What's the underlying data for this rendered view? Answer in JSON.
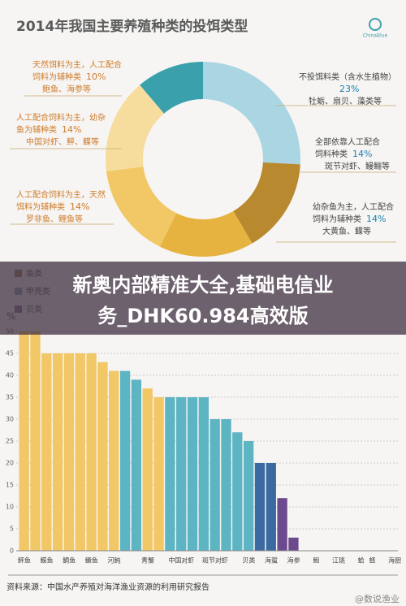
{
  "header": {
    "title": "2014年我国主要养殖种类的投饵类型",
    "logo": "ChinaBlue"
  },
  "banner": [
    "新奥内部精准大全,基础电信业",
    "务_DHK60.984高效版"
  ],
  "chart_data": [
    {
      "type": "donut",
      "labels": [
        [
          "不投饵料类（含水生植物）",
          ""
        ],
        [
          "全部依靠人工配合",
          "饲料种类"
        ],
        [
          "幼杂鱼为主，人工配合",
          "饲料为辅种类"
        ],
        [
          "人工配合饲料为主，天然",
          "饵料为辅种类"
        ],
        [
          "人工配合饲料为主，幼杂",
          "鱼为辅种类"
        ],
        [
          "天然饵料为主，人工配合",
          "饲料为辅种类"
        ]
      ],
      "examples": [
        "牡蛎、扇贝、藻类等",
        "斑节对虾、鳗鲡等",
        "大黄鱼、鲽等",
        "罗非鱼、鲤鱼等",
        "中国对虾、鲆、鲽等",
        "鲍鱼、海参等"
      ],
      "values": [
        23,
        14,
        14,
        14,
        14,
        10
      ],
      "value_labels": [
        "23%",
        "14%",
        "14%",
        "14%",
        "14%",
        "10%"
      ],
      "colors": [
        "#a9d6e2",
        "#b8892f",
        "#e6b240",
        "#f1c865",
        "#f6dd9e",
        "#3aa1ac"
      ]
    },
    {
      "type": "bar",
      "y_label": "%",
      "legend": [
        {
          "name": "鱼类",
          "color": "#9c7b5b"
        },
        {
          "name": "甲壳类",
          "color": "#8aa0b0"
        },
        {
          "name": "贝类",
          "color": "#8b6fa0"
        }
      ],
      "categories": [
        "鲆鱼",
        null,
        "鲽鱼",
        null,
        "鲷鱼",
        null,
        "鳜鱼",
        null,
        "河鲀",
        null,
        null,
        "青蟹",
        null,
        null,
        "中国对虾",
        null,
        null,
        "斑节对虾",
        null,
        null,
        "贝类",
        null,
        "海蜇",
        null,
        "海参",
        null,
        "鲍",
        null,
        "江珧",
        null,
        "蛤",
        "蛏",
        null,
        "海胆"
      ],
      "values": [
        50,
        50,
        45,
        45,
        45,
        45,
        45,
        43,
        41,
        41,
        39,
        37,
        35,
        35,
        35,
        35,
        35,
        30,
        30,
        27,
        25,
        20,
        20,
        12,
        3,
        0,
        0,
        0,
        0,
        0,
        0,
        0,
        0,
        0
      ],
      "colors": [
        "#f2c766",
        "#f2c766",
        "#f2c766",
        "#f2c766",
        "#f2c766",
        "#f2c766",
        "#f2c766",
        "#f2c766",
        "#f2c766",
        "#5db5c4",
        "#5db5c4",
        "#f2c766",
        "#f2c766",
        "#5db5c4",
        "#5db5c4",
        "#5db5c4",
        "#5db5c4",
        "#5db5c4",
        "#5db5c4",
        "#5db5c4",
        "#5db5c4",
        "#3b6aa0",
        "#3b6aa0",
        "#6d4a8e",
        "#6d4a8e",
        "#6d4a8e",
        "#6d4a8e",
        "#6d4a8e",
        "#6d4a8e",
        "#6d4a8e",
        "#6d4a8e",
        "#6d4a8e",
        "#6d4a8e",
        "#6d4a8e"
      ],
      "ylim": [
        0,
        50
      ],
      "yticks": [
        0,
        5,
        10,
        15,
        20,
        25,
        30,
        35,
        40,
        45,
        50
      ],
      "grid": true
    }
  ],
  "footer": {
    "source": "资料来源：中国水产养殖对海洋渔业资源的利用研究报告",
    "watermark": "@数说渔业"
  }
}
